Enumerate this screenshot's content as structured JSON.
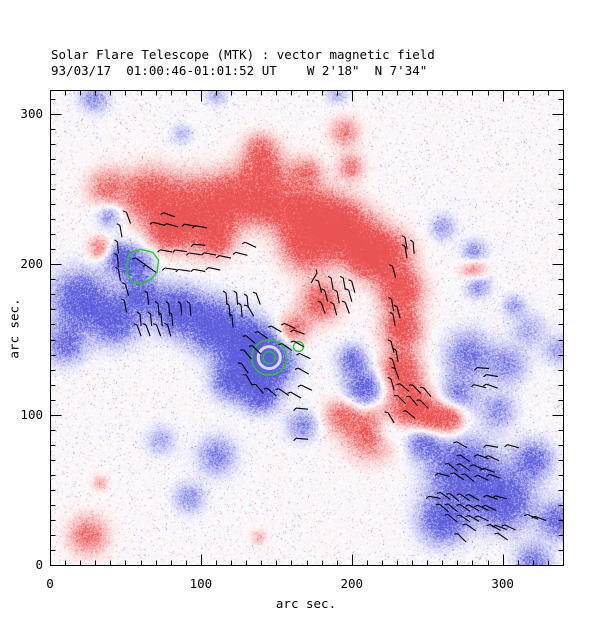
{
  "chart_data": {
    "type": "heatmap",
    "title": "Solar Flare Telescope (MTK) : vector magnetic field",
    "subtitle": "93/03/17  01:00:46-01:01:52 UT    W 2'18\"  N 7'34\"",
    "xlabel": "arc sec.",
    "ylabel": "arc sec.",
    "xlim": [
      0,
      340
    ],
    "ylim": [
      0,
      316
    ],
    "x_major_ticks": [
      0,
      100,
      200,
      300
    ],
    "y_major_ticks": [
      0,
      100,
      200,
      300
    ],
    "minor_tick_step": 10,
    "grid": false,
    "legend": "none",
    "colors": {
      "positive_polarity": "#f25c5c",
      "negative_polarity": "#6a6ae0",
      "contour": "#22cc22",
      "vector": "#000000",
      "frame": "#000000",
      "background": "#ffffff"
    },
    "polarity_blobs_format": "[x_arcsec, y_arcsec, sigma_arcsec, amplitude, polarity]",
    "polarity_blobs": [
      [
        37,
        251,
        9,
        0.5,
        1
      ],
      [
        65,
        246,
        12,
        0.75,
        1
      ],
      [
        93,
        234,
        15,
        0.9,
        1
      ],
      [
        119,
        243,
        12,
        0.8,
        1
      ],
      [
        141,
        262,
        11,
        0.7,
        1
      ],
      [
        139,
        278,
        7,
        0.4,
        1
      ],
      [
        141,
        240,
        9,
        0.6,
        1
      ],
      [
        164,
        235,
        13,
        0.85,
        1
      ],
      [
        187,
        229,
        12,
        0.8,
        1
      ],
      [
        170,
        211,
        11,
        0.75,
        1
      ],
      [
        201,
        218,
        12,
        0.85,
        1
      ],
      [
        223,
        207,
        11,
        0.8,
        1
      ],
      [
        232,
        183,
        10,
        0.85,
        1
      ],
      [
        233,
        157,
        9,
        0.8,
        1
      ],
      [
        232,
        130,
        9,
        0.8,
        1
      ],
      [
        239,
        107,
        10,
        0.8,
        1
      ],
      [
        252,
        97,
        8,
        0.6,
        1
      ],
      [
        265,
        98,
        7,
        0.7,
        1
      ],
      [
        195,
        288,
        7,
        0.45,
        1
      ],
      [
        199,
        265,
        6,
        0.5,
        1
      ],
      [
        170,
        262,
        7,
        0.45,
        1
      ],
      [
        210,
        203,
        8,
        0.6,
        1
      ],
      [
        25,
        20,
        9,
        0.55,
        1
      ],
      [
        77,
        222,
        8,
        0.6,
        1
      ],
      [
        110,
        217,
        8,
        0.65,
        1
      ],
      [
        179,
        175,
        9,
        0.7,
        1
      ],
      [
        161,
        157,
        7,
        0.6,
        1
      ],
      [
        213,
        89,
        12,
        0.7,
        1
      ],
      [
        193,
        100,
        8,
        0.5,
        1
      ],
      [
        33,
        211,
        5.5,
        0.55,
        1
      ],
      [
        33,
        55,
        3.5,
        0.35,
        1
      ],
      [
        138,
        19,
        3.5,
        0.3,
        1
      ],
      [
        281,
        197,
        6,
        0.6,
        1
      ],
      [
        29,
        311,
        7,
        0.4,
        -1
      ],
      [
        110,
        313,
        5,
        0.3,
        -1
      ],
      [
        190,
        314,
        5,
        0.3,
        -1
      ],
      [
        87,
        287,
        5,
        0.25,
        -1
      ],
      [
        45,
        205,
        7,
        0.6,
        -1
      ],
      [
        39,
        233,
        6,
        0.45,
        -1
      ],
      [
        57,
        200,
        8,
        0.55,
        -1
      ],
      [
        20,
        177,
        13,
        0.75,
        -1
      ],
      [
        43,
        163,
        11,
        0.7,
        -1
      ],
      [
        10,
        147,
        9,
        0.55,
        -1
      ],
      [
        60,
        180,
        8,
        0.6,
        -1
      ],
      [
        83,
        170,
        11,
        0.75,
        -1
      ],
      [
        107,
        160,
        12,
        0.8,
        -1
      ],
      [
        130,
        147,
        12,
        0.85,
        -1
      ],
      [
        145,
        135,
        11,
        0.95,
        -1
      ],
      [
        120,
        123,
        9,
        0.7,
        -1
      ],
      [
        139,
        113,
        8,
        0.7,
        -1
      ],
      [
        167,
        93,
        7,
        0.45,
        -1
      ],
      [
        208,
        117,
        9,
        0.7,
        -1
      ],
      [
        200,
        137,
        7,
        0.5,
        -1
      ],
      [
        281,
        207,
        6,
        0.5,
        -1
      ],
      [
        283,
        187,
        6,
        0.5,
        -1
      ],
      [
        260,
        225,
        6,
        0.35,
        -1
      ],
      [
        307,
        173,
        5,
        0.35,
        -1
      ],
      [
        317,
        157,
        8,
        0.3,
        -1
      ],
      [
        337,
        143,
        7,
        0.35,
        -1
      ],
      [
        277,
        140,
        11,
        0.5,
        -1
      ],
      [
        303,
        133,
        9,
        0.4,
        -1
      ],
      [
        270,
        113,
        9,
        0.45,
        -1
      ],
      [
        297,
        103,
        8,
        0.4,
        -1
      ],
      [
        273,
        63,
        15,
        0.8,
        -1
      ],
      [
        300,
        43,
        13,
        0.8,
        -1
      ],
      [
        260,
        30,
        11,
        0.7,
        -1
      ],
      [
        320,
        70,
        9,
        0.6,
        -1
      ],
      [
        337,
        30,
        9,
        0.6,
        -1
      ],
      [
        247,
        83,
        8,
        0.6,
        -1
      ],
      [
        223,
        90,
        7,
        0.5,
        -1
      ],
      [
        320,
        3,
        8,
        0.5,
        -1
      ],
      [
        110,
        73,
        9,
        0.45,
        -1
      ],
      [
        92,
        45,
        7,
        0.4,
        -1
      ],
      [
        73,
        83,
        7,
        0.3,
        -1
      ]
    ],
    "contours": {
      "color": "#22cc22",
      "items": [
        {
          "type": "polygon",
          "points": [
            [
              51,
              202
            ],
            [
              53,
              208
            ],
            [
              60,
              210
            ],
            [
              68,
              208
            ],
            [
              72,
              203
            ],
            [
              71,
              195
            ],
            [
              67,
              190
            ],
            [
              60,
              187
            ],
            [
              54,
              189
            ],
            [
              51,
              195
            ]
          ]
        },
        {
          "type": "circle",
          "cx": 145.3,
          "cy": 138,
          "r": 11.7
        },
        {
          "type": "circle",
          "cx": 145.3,
          "cy": 138,
          "r": 4
        },
        {
          "type": "circle",
          "cx": 164.7,
          "cy": 145.3,
          "r": 3.3
        }
      ]
    },
    "white_ring": {
      "cx": 145.3,
      "cy": 138,
      "r": 7.3
    },
    "vectors_format": "[x_arcsec, y_arcsec, angle_deg_below_horizontal]",
    "vector_length_arcsec": 8,
    "vectors": [
      [
        79,
        233,
        20
      ],
      [
        72,
        227,
        15
      ],
      [
        81,
        226,
        15
      ],
      [
        93,
        226,
        10
      ],
      [
        100,
        225,
        10
      ],
      [
        99,
        213,
        5
      ],
      [
        133,
        213,
        25
      ],
      [
        127,
        207,
        15
      ],
      [
        236,
        214,
        80
      ],
      [
        236,
        208,
        80
      ],
      [
        241,
        211,
        85
      ],
      [
        52,
        231,
        70
      ],
      [
        47,
        222,
        80
      ],
      [
        45,
        211,
        85
      ],
      [
        45,
        202,
        85
      ],
      [
        46,
        193,
        80
      ],
      [
        51,
        183,
        75
      ],
      [
        50,
        172,
        80
      ],
      [
        60,
        202,
        35
      ],
      [
        67,
        197,
        35
      ],
      [
        77,
        209,
        10
      ],
      [
        87,
        209,
        8
      ],
      [
        96,
        207,
        8
      ],
      [
        106,
        207,
        10
      ],
      [
        116,
        205,
        12
      ],
      [
        80,
        197,
        8
      ],
      [
        89,
        196,
        8
      ],
      [
        99,
        196,
        10
      ],
      [
        109,
        197,
        12
      ],
      [
        65,
        177,
        85
      ],
      [
        117,
        177,
        85
      ],
      [
        124,
        177,
        85
      ],
      [
        131,
        175,
        85
      ],
      [
        138,
        177,
        70
      ],
      [
        72,
        170,
        85
      ],
      [
        79,
        170,
        85
      ],
      [
        87,
        170,
        85
      ],
      [
        93,
        170,
        85
      ],
      [
        119,
        169,
        85
      ],
      [
        127,
        169,
        85
      ],
      [
        133,
        169,
        60
      ],
      [
        60,
        163,
        85
      ],
      [
        67,
        163,
        85
      ],
      [
        74,
        163,
        85
      ],
      [
        81,
        163,
        85
      ],
      [
        121,
        162,
        85
      ],
      [
        59,
        156,
        70
      ],
      [
        65,
        156,
        70
      ],
      [
        72,
        156,
        70
      ],
      [
        79,
        156,
        75
      ],
      [
        133,
        150,
        40
      ],
      [
        141,
        153,
        35
      ],
      [
        150,
        157,
        30
      ],
      [
        159,
        159,
        25
      ],
      [
        165,
        155,
        20
      ],
      [
        131,
        140,
        50
      ],
      [
        129,
        131,
        55
      ],
      [
        132,
        123,
        60
      ],
      [
        139,
        117,
        50
      ],
      [
        147,
        115,
        40
      ],
      [
        155,
        115,
        35
      ],
      [
        163,
        113,
        30
      ],
      [
        170,
        118,
        25
      ],
      [
        168,
        129,
        30
      ],
      [
        169,
        139,
        25
      ],
      [
        165,
        147,
        30
      ],
      [
        157,
        145,
        35
      ],
      [
        137,
        143,
        45
      ],
      [
        179,
        185,
        75
      ],
      [
        187,
        187,
        80
      ],
      [
        195,
        187,
        80
      ],
      [
        201,
        185,
        75
      ],
      [
        183,
        179,
        75
      ],
      [
        191,
        178,
        80
      ],
      [
        199,
        179,
        75
      ],
      [
        181,
        171,
        70
      ],
      [
        189,
        170,
        75
      ],
      [
        197,
        171,
        70
      ],
      [
        175,
        191,
        120
      ],
      [
        228,
        195,
        75
      ],
      [
        227,
        173,
        80
      ],
      [
        231,
        168,
        75
      ],
      [
        228,
        163,
        80
      ],
      [
        227,
        145,
        75
      ],
      [
        230,
        139,
        80
      ],
      [
        228,
        133,
        75
      ],
      [
        230,
        127,
        70
      ],
      [
        227,
        120,
        75
      ],
      [
        226,
        98,
        60
      ],
      [
        167,
        104,
        5
      ],
      [
        167,
        84,
        5
      ],
      [
        235,
        118,
        40
      ],
      [
        243,
        117,
        45
      ],
      [
        250,
        115,
        50
      ],
      [
        233,
        110,
        45
      ],
      [
        241,
        109,
        50
      ],
      [
        248,
        107,
        45
      ],
      [
        239,
        100,
        40
      ],
      [
        287,
        131,
        5
      ],
      [
        293,
        126,
        10
      ],
      [
        285,
        119,
        15
      ],
      [
        293,
        119,
        20
      ],
      [
        273,
        80,
        30
      ],
      [
        293,
        79,
        10
      ],
      [
        307,
        79,
        15
      ],
      [
        275,
        71,
        35
      ],
      [
        287,
        72,
        20
      ],
      [
        294,
        71,
        25
      ],
      [
        267,
        65,
        40
      ],
      [
        275,
        65,
        35
      ],
      [
        284,
        65,
        25
      ],
      [
        291,
        63,
        20
      ],
      [
        261,
        60,
        15
      ],
      [
        271,
        59,
        35
      ],
      [
        278,
        58,
        40
      ],
      [
        287,
        58,
        25
      ],
      [
        295,
        59,
        20
      ],
      [
        255,
        45,
        10
      ],
      [
        262,
        46,
        35
      ],
      [
        268,
        45,
        40
      ],
      [
        275,
        45,
        35
      ],
      [
        281,
        45,
        30
      ],
      [
        293,
        45,
        20
      ],
      [
        299,
        45,
        15
      ],
      [
        261,
        38,
        40
      ],
      [
        267,
        38,
        40
      ],
      [
        275,
        38,
        35
      ],
      [
        281,
        38,
        30
      ],
      [
        287,
        38,
        25
      ],
      [
        292,
        38,
        25
      ],
      [
        267,
        31,
        40
      ],
      [
        275,
        31,
        35
      ],
      [
        281,
        31,
        30
      ],
      [
        287,
        31,
        25
      ],
      [
        279,
        25,
        35
      ],
      [
        295,
        25,
        30
      ],
      [
        299,
        25,
        20
      ],
      [
        305,
        25,
        25
      ],
      [
        300,
        19,
        35
      ],
      [
        273,
        18,
        45
      ],
      [
        320,
        32,
        25
      ],
      [
        325,
        31,
        20
      ]
    ]
  }
}
